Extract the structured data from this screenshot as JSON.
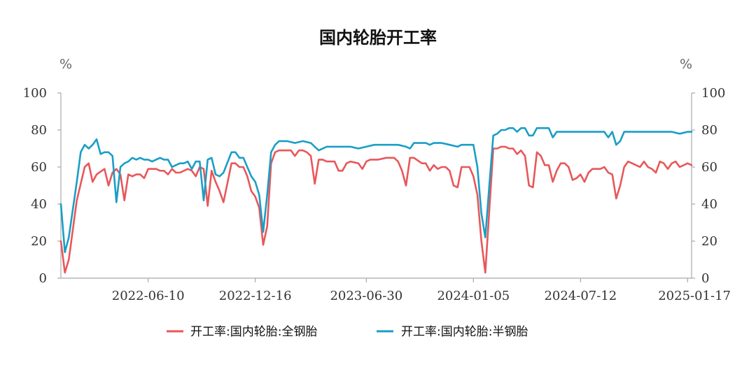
{
  "chart_data": {
    "type": "line",
    "title": "国内轮胎开工率",
    "left_unit": "%",
    "right_unit": "%",
    "ylim": [
      0,
      100
    ],
    "y_ticks": [
      0,
      20,
      40,
      60,
      80,
      100
    ],
    "y2lim": [
      0,
      100
    ],
    "y2_ticks": [
      0,
      20,
      40,
      60,
      80,
      100
    ],
    "x_range": [
      "2022-01-07",
      "2025-01-24"
    ],
    "x_ticks": [
      "2022-06-10",
      "2022-12-16",
      "2023-06-30",
      "2024-01-05",
      "2024-07-12",
      "2025-01-17"
    ],
    "legend_position": "bottom",
    "grid": false,
    "series": [
      {
        "name": "开工率:国内轮胎:全钢胎",
        "color": "#e8575a",
        "points": [
          [
            "2022-01-07",
            20
          ],
          [
            "2022-01-14",
            3
          ],
          [
            "2022-01-21",
            10
          ],
          [
            "2022-02-04",
            42
          ],
          [
            "2022-02-18",
            60
          ],
          [
            "2022-02-25",
            62
          ],
          [
            "2022-03-04",
            52
          ],
          [
            "2022-03-11",
            56
          ],
          [
            "2022-03-25",
            59
          ],
          [
            "2022-04-01",
            50
          ],
          [
            "2022-04-08",
            57
          ],
          [
            "2022-04-15",
            59
          ],
          [
            "2022-04-22",
            56
          ],
          [
            "2022-04-29",
            42
          ],
          [
            "2022-05-06",
            56
          ],
          [
            "2022-05-13",
            55
          ],
          [
            "2022-05-20",
            56
          ],
          [
            "2022-05-27",
            56
          ],
          [
            "2022-06-03",
            54
          ],
          [
            "2022-06-10",
            59
          ],
          [
            "2022-06-24",
            59
          ],
          [
            "2022-07-01",
            58
          ],
          [
            "2022-07-08",
            58
          ],
          [
            "2022-07-15",
            56
          ],
          [
            "2022-07-22",
            59
          ],
          [
            "2022-07-29",
            57
          ],
          [
            "2022-08-05",
            57
          ],
          [
            "2022-08-19",
            59
          ],
          [
            "2022-08-26",
            58
          ],
          [
            "2022-09-02",
            55
          ],
          [
            "2022-09-09",
            60
          ],
          [
            "2022-09-16",
            59
          ],
          [
            "2022-09-23",
            39
          ],
          [
            "2022-09-30",
            58
          ],
          [
            "2022-10-07",
            52
          ],
          [
            "2022-10-14",
            47
          ],
          [
            "2022-10-21",
            41
          ],
          [
            "2022-11-04",
            62
          ],
          [
            "2022-11-11",
            62
          ],
          [
            "2022-11-18",
            60
          ],
          [
            "2022-11-25",
            60
          ],
          [
            "2022-12-02",
            55
          ],
          [
            "2022-12-09",
            47
          ],
          [
            "2022-12-16",
            44
          ],
          [
            "2022-12-23",
            38
          ],
          [
            "2022-12-30",
            18
          ],
          [
            "2023-01-06",
            28
          ],
          [
            "2023-01-13",
            62
          ],
          [
            "2023-01-20",
            68
          ],
          [
            "2023-01-27",
            69
          ],
          [
            "2023-02-03",
            69
          ],
          [
            "2023-02-10",
            69
          ],
          [
            "2023-02-17",
            69
          ],
          [
            "2023-02-24",
            66
          ],
          [
            "2023-03-03",
            69
          ],
          [
            "2023-03-10",
            69
          ],
          [
            "2023-03-17",
            68
          ],
          [
            "2023-03-24",
            66
          ],
          [
            "2023-03-31",
            51
          ],
          [
            "2023-04-07",
            64
          ],
          [
            "2023-04-14",
            64
          ],
          [
            "2023-04-21",
            63
          ],
          [
            "2023-05-05",
            63
          ],
          [
            "2023-05-12",
            58
          ],
          [
            "2023-05-19",
            58
          ],
          [
            "2023-05-26",
            62
          ],
          [
            "2023-06-02",
            63
          ],
          [
            "2023-06-16",
            62
          ],
          [
            "2023-06-23",
            59
          ],
          [
            "2023-06-30",
            63
          ],
          [
            "2023-07-07",
            64
          ],
          [
            "2023-07-21",
            64
          ],
          [
            "2023-08-04",
            65
          ],
          [
            "2023-08-18",
            65
          ],
          [
            "2023-08-25",
            63
          ],
          [
            "2023-09-01",
            58
          ],
          [
            "2023-09-08",
            50
          ],
          [
            "2023-09-15",
            65
          ],
          [
            "2023-09-22",
            65
          ],
          [
            "2023-10-06",
            62
          ],
          [
            "2023-10-13",
            62
          ],
          [
            "2023-10-20",
            58
          ],
          [
            "2023-10-27",
            61
          ],
          [
            "2023-11-03",
            59
          ],
          [
            "2023-11-10",
            60
          ],
          [
            "2023-11-17",
            60
          ],
          [
            "2023-11-24",
            58
          ],
          [
            "2023-12-01",
            50
          ],
          [
            "2023-12-08",
            49
          ],
          [
            "2023-12-15",
            60
          ],
          [
            "2023-12-22",
            60
          ],
          [
            "2023-12-29",
            60
          ],
          [
            "2024-01-05",
            55
          ],
          [
            "2024-01-12",
            45
          ],
          [
            "2024-01-19",
            20
          ],
          [
            "2024-01-26",
            3
          ],
          [
            "2024-02-09",
            70
          ],
          [
            "2024-02-16",
            70
          ],
          [
            "2024-02-23",
            71
          ],
          [
            "2024-03-01",
            71
          ],
          [
            "2024-03-08",
            70
          ],
          [
            "2024-03-15",
            70
          ],
          [
            "2024-03-22",
            67
          ],
          [
            "2024-03-29",
            69
          ],
          [
            "2024-04-05",
            66
          ],
          [
            "2024-04-12",
            50
          ],
          [
            "2024-04-19",
            49
          ],
          [
            "2024-04-26",
            68
          ],
          [
            "2024-05-03",
            66
          ],
          [
            "2024-05-10",
            61
          ],
          [
            "2024-05-17",
            61
          ],
          [
            "2024-05-24",
            52
          ],
          [
            "2024-05-31",
            58
          ],
          [
            "2024-06-07",
            62
          ],
          [
            "2024-06-14",
            62
          ],
          [
            "2024-06-21",
            60
          ],
          [
            "2024-06-28",
            53
          ],
          [
            "2024-07-05",
            54
          ],
          [
            "2024-07-12",
            56
          ],
          [
            "2024-07-19",
            52
          ],
          [
            "2024-07-26",
            57
          ],
          [
            "2024-08-02",
            59
          ],
          [
            "2024-08-09",
            59
          ],
          [
            "2024-08-16",
            59
          ],
          [
            "2024-08-23",
            60
          ],
          [
            "2024-08-30",
            57
          ],
          [
            "2024-09-06",
            56
          ],
          [
            "2024-09-13",
            43
          ],
          [
            "2024-09-20",
            50
          ],
          [
            "2024-09-27",
            60
          ],
          [
            "2024-10-04",
            63
          ],
          [
            "2024-10-11",
            62
          ],
          [
            "2024-10-18",
            61
          ],
          [
            "2024-10-25",
            60
          ],
          [
            "2024-11-01",
            63
          ],
          [
            "2024-11-08",
            60
          ],
          [
            "2024-11-15",
            59
          ],
          [
            "2024-11-22",
            57
          ],
          [
            "2024-11-29",
            63
          ],
          [
            "2024-12-06",
            62
          ],
          [
            "2024-12-13",
            59
          ],
          [
            "2024-12-20",
            62
          ],
          [
            "2024-12-27",
            63
          ],
          [
            "2025-01-03",
            60
          ],
          [
            "2025-01-17",
            62
          ],
          [
            "2025-01-24",
            61
          ]
        ]
      },
      {
        "name": "开工率:国内轮胎:半钢胎",
        "color": "#1a9ec6",
        "points": [
          [
            "2022-01-07",
            40
          ],
          [
            "2022-01-14",
            14
          ],
          [
            "2022-01-21",
            22
          ],
          [
            "2022-02-04",
            52
          ],
          [
            "2022-02-11",
            68
          ],
          [
            "2022-02-18",
            72
          ],
          [
            "2022-02-25",
            70
          ],
          [
            "2022-03-04",
            72
          ],
          [
            "2022-03-11",
            75
          ],
          [
            "2022-03-18",
            67
          ],
          [
            "2022-03-25",
            68
          ],
          [
            "2022-04-01",
            68
          ],
          [
            "2022-04-08",
            66
          ],
          [
            "2022-04-15",
            41
          ],
          [
            "2022-04-22",
            60
          ],
          [
            "2022-04-29",
            62
          ],
          [
            "2022-05-06",
            63
          ],
          [
            "2022-05-13",
            65
          ],
          [
            "2022-05-20",
            64
          ],
          [
            "2022-05-27",
            65
          ],
          [
            "2022-06-03",
            64
          ],
          [
            "2022-06-10",
            64
          ],
          [
            "2022-06-17",
            63
          ],
          [
            "2022-06-24",
            64
          ],
          [
            "2022-07-01",
            65
          ],
          [
            "2022-07-08",
            64
          ],
          [
            "2022-07-15",
            64
          ],
          [
            "2022-07-22",
            60
          ],
          [
            "2022-07-29",
            61
          ],
          [
            "2022-08-05",
            62
          ],
          [
            "2022-08-12",
            62
          ],
          [
            "2022-08-19",
            63
          ],
          [
            "2022-08-26",
            59
          ],
          [
            "2022-09-02",
            63
          ],
          [
            "2022-09-09",
            63
          ],
          [
            "2022-09-16",
            42
          ],
          [
            "2022-09-23",
            64
          ],
          [
            "2022-09-30",
            65
          ],
          [
            "2022-10-07",
            56
          ],
          [
            "2022-10-14",
            55
          ],
          [
            "2022-10-21",
            57
          ],
          [
            "2022-11-04",
            68
          ],
          [
            "2022-11-11",
            68
          ],
          [
            "2022-11-18",
            65
          ],
          [
            "2022-11-25",
            65
          ],
          [
            "2022-12-02",
            60
          ],
          [
            "2022-12-09",
            55
          ],
          [
            "2022-12-16",
            52
          ],
          [
            "2022-12-23",
            45
          ],
          [
            "2022-12-30",
            25
          ],
          [
            "2023-01-06",
            45
          ],
          [
            "2023-01-13",
            68
          ],
          [
            "2023-01-20",
            72
          ],
          [
            "2023-01-27",
            74
          ],
          [
            "2023-02-10",
            74
          ],
          [
            "2023-02-24",
            73
          ],
          [
            "2023-03-10",
            74
          ],
          [
            "2023-03-24",
            73
          ],
          [
            "2023-03-31",
            71
          ],
          [
            "2023-04-07",
            69
          ],
          [
            "2023-04-21",
            71
          ],
          [
            "2023-05-05",
            71
          ],
          [
            "2023-05-19",
            71
          ],
          [
            "2023-06-02",
            71
          ],
          [
            "2023-06-16",
            70
          ],
          [
            "2023-06-30",
            71
          ],
          [
            "2023-07-14",
            72
          ],
          [
            "2023-07-28",
            72
          ],
          [
            "2023-08-11",
            72
          ],
          [
            "2023-08-25",
            72
          ],
          [
            "2023-09-08",
            71
          ],
          [
            "2023-09-15",
            70
          ],
          [
            "2023-09-22",
            73
          ],
          [
            "2023-10-06",
            73
          ],
          [
            "2023-10-13",
            73
          ],
          [
            "2023-10-20",
            72
          ],
          [
            "2023-10-27",
            73
          ],
          [
            "2023-11-10",
            73
          ],
          [
            "2023-11-24",
            72
          ],
          [
            "2023-12-08",
            71
          ],
          [
            "2023-12-15",
            72
          ],
          [
            "2023-12-22",
            72
          ],
          [
            "2024-01-05",
            72
          ],
          [
            "2024-01-12",
            60
          ],
          [
            "2024-01-19",
            35
          ],
          [
            "2024-01-26",
            22
          ],
          [
            "2024-02-02",
            50
          ],
          [
            "2024-02-09",
            77
          ],
          [
            "2024-02-16",
            78
          ],
          [
            "2024-02-23",
            80
          ],
          [
            "2024-03-01",
            80
          ],
          [
            "2024-03-08",
            81
          ],
          [
            "2024-03-15",
            81
          ],
          [
            "2024-03-22",
            79
          ],
          [
            "2024-03-29",
            81
          ],
          [
            "2024-04-05",
            81
          ],
          [
            "2024-04-12",
            77
          ],
          [
            "2024-04-19",
            77
          ],
          [
            "2024-04-26",
            81
          ],
          [
            "2024-05-03",
            81
          ],
          [
            "2024-05-10",
            81
          ],
          [
            "2024-05-17",
            81
          ],
          [
            "2024-05-24",
            76
          ],
          [
            "2024-05-31",
            79
          ],
          [
            "2024-06-14",
            79
          ],
          [
            "2024-06-28",
            79
          ],
          [
            "2024-07-12",
            79
          ],
          [
            "2024-07-26",
            79
          ],
          [
            "2024-08-09",
            79
          ],
          [
            "2024-08-23",
            79
          ],
          [
            "2024-08-30",
            76
          ],
          [
            "2024-09-06",
            79
          ],
          [
            "2024-09-13",
            72
          ],
          [
            "2024-09-20",
            74
          ],
          [
            "2024-09-27",
            79
          ],
          [
            "2024-10-11",
            79
          ],
          [
            "2024-10-25",
            79
          ],
          [
            "2024-11-08",
            79
          ],
          [
            "2024-11-22",
            79
          ],
          [
            "2024-12-06",
            79
          ],
          [
            "2024-12-20",
            79
          ],
          [
            "2025-01-03",
            78
          ],
          [
            "2025-01-17",
            79
          ],
          [
            "2025-01-24",
            79
          ]
        ]
      }
    ]
  }
}
